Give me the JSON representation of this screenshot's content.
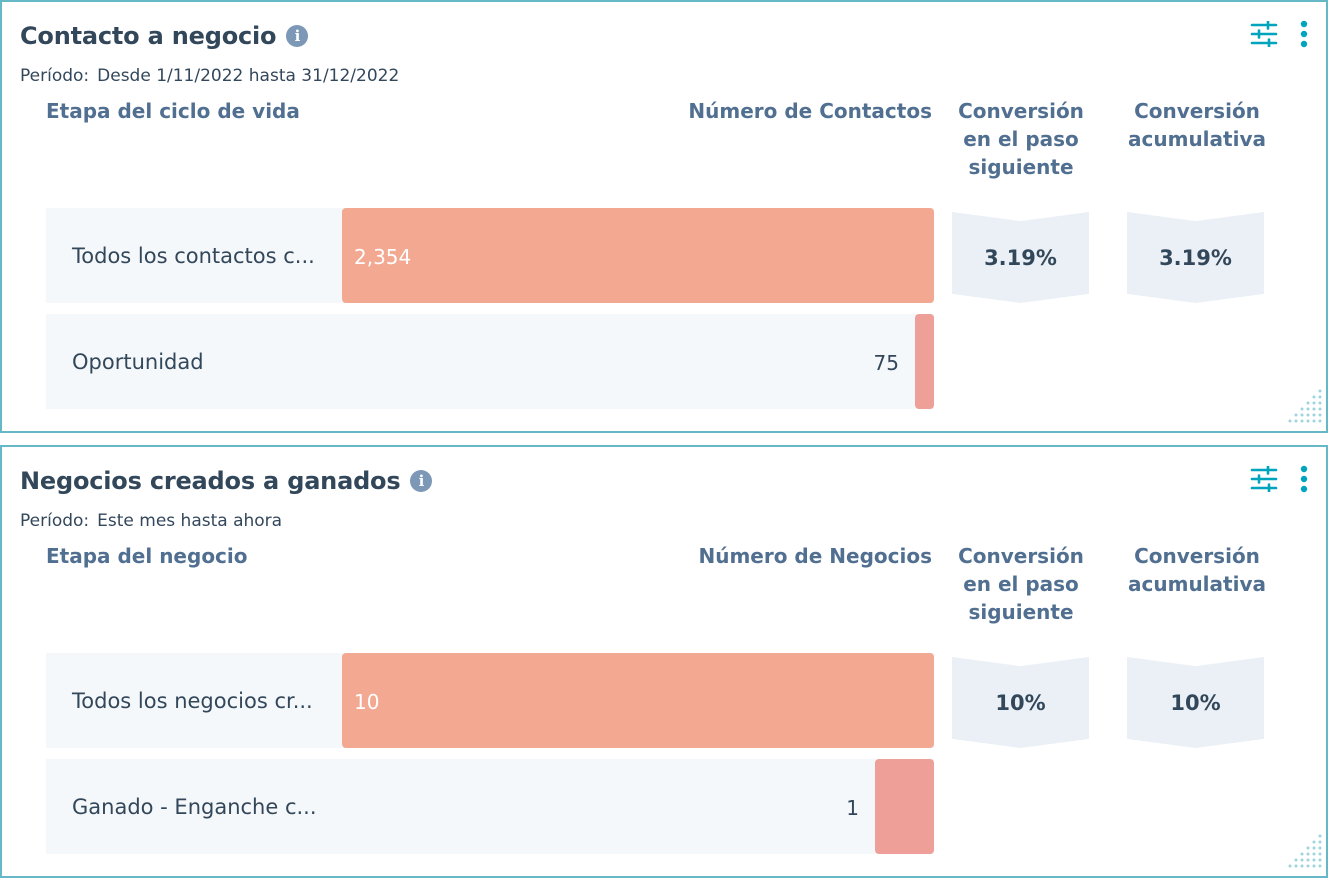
{
  "colors": {
    "border": "#66b8c6",
    "bar_big": "#f2a891",
    "bar_small": "#ee9f98",
    "row_bg": "#f5f8fa",
    "chevron_bg": "#eaf0f6",
    "header_text": "#516f90",
    "text": "#33475b",
    "icon": "#00a4bd"
  },
  "icons": {
    "info": "info-icon",
    "filter": "sliders-icon",
    "more": "vertical-dots-icon",
    "resize": "resize-handle-icon"
  },
  "cards": [
    {
      "title": "Contacto a negocio",
      "info_glyph": "i",
      "period_label": "Período:",
      "period_value": "Desde 1/11/2022 hasta 31/12/2022",
      "col_stage": "Etapa del ciclo de vida",
      "col_count": "Número de Contactos",
      "col_next": "Conversión en el paso siguiente",
      "col_cumulative": "Conversión acumulativa",
      "rows": [
        {
          "label": "Todos los contactos c...",
          "value": 2354,
          "value_label": "2,354"
        },
        {
          "label": "Oportunidad",
          "value": 75,
          "value_label": "75"
        }
      ],
      "next_step_conversion": "3.19%",
      "cumulative_conversion": "3.19%"
    },
    {
      "title": "Negocios creados a ganados",
      "info_glyph": "i",
      "period_label": "Período:",
      "period_value": "Este mes hasta ahora",
      "col_stage": "Etapa del negocio",
      "col_count": "Número de Negocios",
      "col_next": "Conversión en el paso siguiente",
      "col_cumulative": "Conversión acumulativa",
      "rows": [
        {
          "label": "Todos los negocios cr...",
          "value": 10,
          "value_label": "10"
        },
        {
          "label": "Ganado - Enganche c...",
          "value": 1,
          "value_label": "1"
        }
      ],
      "next_step_conversion": "10%",
      "cumulative_conversion": "10%"
    }
  ]
}
